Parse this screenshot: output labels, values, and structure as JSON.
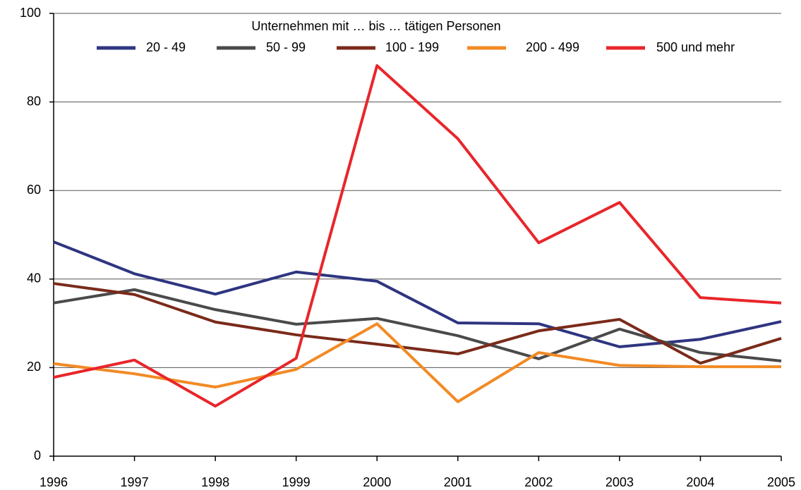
{
  "chart_data": {
    "type": "line",
    "legend_title": "Unternehmen mit … bis … tätigen Personen",
    "x": [
      1996,
      1997,
      1998,
      1999,
      2000,
      2001,
      2002,
      2003,
      2004,
      2005
    ],
    "xlim": [
      1996,
      2005
    ],
    "xticks": [
      1996,
      1997,
      1998,
      1999,
      2000,
      2001,
      2002,
      2003,
      2004,
      2005
    ],
    "ylim": [
      0,
      100
    ],
    "yticks": [
      0,
      20,
      40,
      60,
      80,
      100
    ],
    "grid": true,
    "legend": "top",
    "series": [
      {
        "name": "20 - 49",
        "color": "#2e3580",
        "values": [
          48.4,
          41.2,
          36.6,
          41.6,
          39.5,
          30.1,
          29.9,
          24.7,
          26.4,
          30.4
        ]
      },
      {
        "name": "50 - 99",
        "color": "#4a4a4a",
        "values": [
          34.6,
          37.6,
          33.1,
          29.8,
          31.1,
          27.2,
          22.0,
          28.7,
          23.4,
          21.5
        ]
      },
      {
        "name": "100 - 199",
        "color": "#7a2a1a",
        "values": [
          39.0,
          36.5,
          30.3,
          27.4,
          25.3,
          23.1,
          28.3,
          30.9,
          21.0,
          26.6
        ]
      },
      {
        "name": "200 - 499",
        "color": "#f28a24",
        "values": [
          20.9,
          18.6,
          15.6,
          19.6,
          29.9,
          12.3,
          23.4,
          20.5,
          20.2,
          20.2
        ]
      },
      {
        "name": "500 und mehr",
        "color": "#e8262b",
        "values": [
          17.8,
          21.7,
          11.3,
          22.1,
          88.2,
          71.7,
          48.2,
          57.3,
          35.8,
          34.6
        ]
      }
    ]
  }
}
